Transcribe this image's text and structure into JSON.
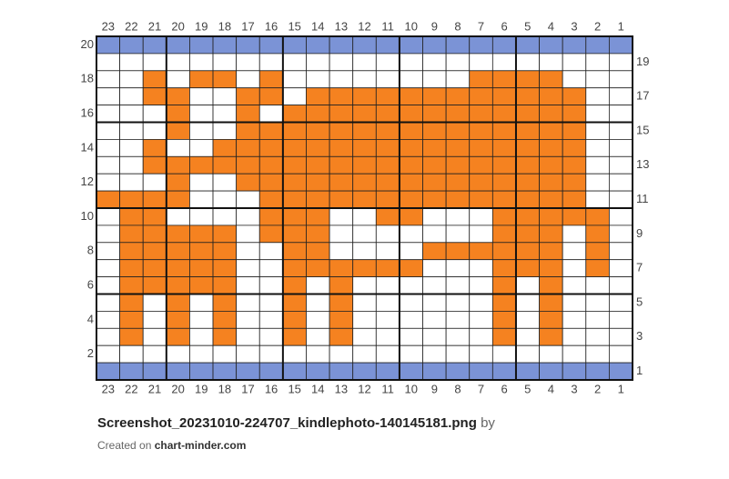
{
  "grid": {
    "columns": [
      23,
      22,
      21,
      20,
      19,
      18,
      17,
      16,
      15,
      14,
      13,
      12,
      11,
      10,
      9,
      8,
      7,
      6,
      5,
      4,
      3,
      2,
      1
    ],
    "rows": [
      20,
      19,
      18,
      17,
      16,
      15,
      14,
      13,
      12,
      11,
      10,
      9,
      8,
      7,
      6,
      5,
      4,
      3,
      2,
      1
    ],
    "colors": {
      "B": "#7b93d6",
      "O": "#f58220",
      ".": "#ffffff"
    },
    "cells": [
      "BBBBBBBBBBBBBBBBBBBBBBB",
      ".......................",
      "..O.OO.O........OOOO...",
      "..OO..OO.OOOOOOOOOOOO..",
      "...O..O.OOOOOOOOOOOOO..",
      "...O..OOOOOOOOOOOOOOO..",
      "..O..OOOOOOOOOOOOOOOO..",
      "..OOOOOOOOOOOOOOOOOOO..",
      "...O..OOOOOOOOOOOOOOO..",
      "OOOO...OOOOOOOOOOOOOO..",
      ".OO....OOO..OO...OOOOO.",
      ".OOOOO.OOO.......OOO.O.",
      ".OOOOO..OO....OOOOOO.O.",
      ".OOOOO..OOOOOO...OOO.O.",
      ".OOOOO..O.O......O.O...",
      ".O.O.O..O.O......O.O...",
      ".O.O.O..O.O......O.O...",
      ".O.O.O..O.O......O.O...",
      ".......................",
      "BBBBBBBBBBBBBBBBBBBBBBB"
    ]
  },
  "footer": {
    "title": "Screenshot_20231010-224707_kindlephoto-140145181.png",
    "by": "by",
    "created_on": "Created on",
    "site": "chart-minder.com"
  }
}
